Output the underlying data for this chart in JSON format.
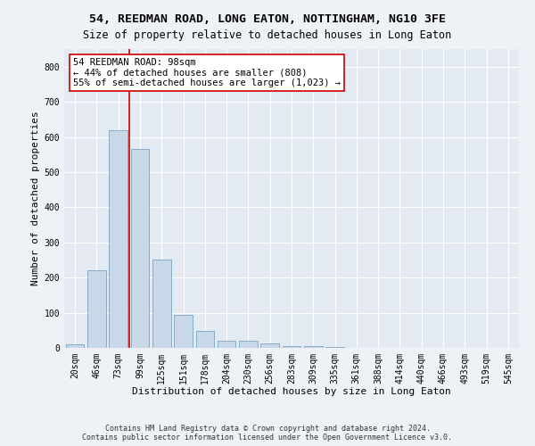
{
  "title": "54, REEDMAN ROAD, LONG EATON, NOTTINGHAM, NG10 3FE",
  "subtitle": "Size of property relative to detached houses in Long Eaton",
  "xlabel": "Distribution of detached houses by size in Long Eaton",
  "ylabel": "Number of detached properties",
  "categories": [
    "20sqm",
    "46sqm",
    "73sqm",
    "99sqm",
    "125sqm",
    "151sqm",
    "178sqm",
    "204sqm",
    "230sqm",
    "256sqm",
    "283sqm",
    "309sqm",
    "335sqm",
    "361sqm",
    "388sqm",
    "414sqm",
    "440sqm",
    "466sqm",
    "493sqm",
    "519sqm",
    "545sqm"
  ],
  "values": [
    10,
    222,
    618,
    565,
    250,
    95,
    48,
    20,
    20,
    13,
    5,
    5,
    3,
    0,
    0,
    0,
    0,
    0,
    0,
    0,
    0
  ],
  "bar_color": "#c8d8e8",
  "bar_edge_color": "#6699bb",
  "property_label": "54 REEDMAN ROAD: 98sqm",
  "annotation_line1": "← 44% of detached houses are smaller (808)",
  "annotation_line2": "55% of semi-detached houses are larger (1,023) →",
  "vline_color": "#cc0000",
  "annotation_box_color": "#ffffff",
  "annotation_box_edge_color": "#cc0000",
  "ylim": [
    0,
    850
  ],
  "yticks": [
    0,
    100,
    200,
    300,
    400,
    500,
    600,
    700,
    800
  ],
  "footer_line1": "Contains HM Land Registry data © Crown copyright and database right 2024.",
  "footer_line2": "Contains public sector information licensed under the Open Government Licence v3.0.",
  "bg_color": "#eef2f7",
  "plot_bg_color": "#e4eaf2",
  "grid_color": "#ffffff",
  "title_fontsize": 9.5,
  "subtitle_fontsize": 8.5,
  "axis_label_fontsize": 8,
  "tick_fontsize": 7,
  "annotation_fontsize": 7.5,
  "footer_fontsize": 6
}
